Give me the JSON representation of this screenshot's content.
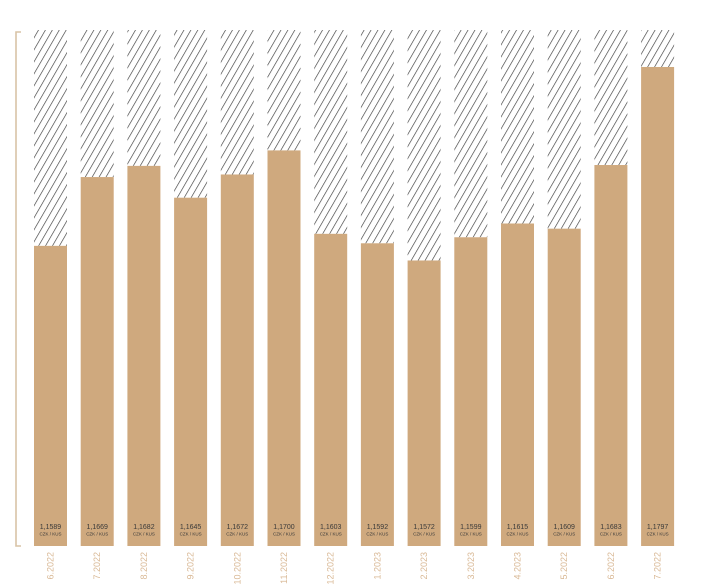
{
  "colors": {
    "bar": "#cfa97e",
    "hatch": "#3a3a3a",
    "axis_bracket": "#d9c3a6",
    "x_label": "#d9b996"
  },
  "chart_data": {
    "type": "bar",
    "title": "",
    "xlabel": "",
    "ylabel": "",
    "unit_label": "CZK / KUS",
    "ylim": [
      1.124,
      1.184
    ],
    "categories": [
      "6.2022",
      "7.2022",
      "8.2022",
      "9.2022",
      "10.2022",
      "11.2022",
      "12.2022",
      "1.2023",
      "2.2023",
      "3.2023",
      "4.2023",
      "5.2022",
      "6.2022",
      "7.2022"
    ],
    "values": [
      1.1589,
      1.1669,
      1.1682,
      1.1645,
      1.1672,
      1.17,
      1.1603,
      1.1592,
      1.1572,
      1.1599,
      1.1615,
      1.1609,
      1.1683,
      1.1797
    ],
    "value_labels": [
      "1,1589",
      "1,1669",
      "1,1682",
      "1,1645",
      "1,1672",
      "1,1700",
      "1,1603",
      "1,1592",
      "1,1572",
      "1,1599",
      "1,1615",
      "1,1609",
      "1,1683",
      "1,1797"
    ],
    "grid": false,
    "legend": "none",
    "background_pattern": "diagonal-hatch"
  }
}
